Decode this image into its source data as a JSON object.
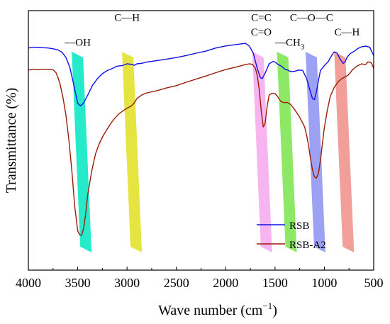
{
  "chart_data": {
    "type": "line",
    "xlabel": "Wave number (cm",
    "xlabel_sup": "−1",
    "xlabel_close": ")",
    "ylabel": "Transmittance (%)",
    "xlim": [
      4000,
      500
    ],
    "x_reversed": true,
    "ylim": [
      0,
      100
    ],
    "y_ticks_shown": false,
    "x_ticks": [
      4000,
      3500,
      3000,
      2500,
      2000,
      1500,
      1000,
      500
    ],
    "x_tick_labels": [
      "4000",
      "3500",
      "3000",
      "2500",
      "2000",
      "1500",
      "1000",
      "500"
    ],
    "legend": {
      "placement": "bottom-right"
    },
    "series": [
      {
        "name": "RSB",
        "color": "#1010e6",
        "x": [
          4000,
          3950,
          3900,
          3850,
          3800,
          3750,
          3700,
          3660,
          3620,
          3580,
          3540,
          3500,
          3470,
          3440,
          3400,
          3350,
          3300,
          3250,
          3200,
          3150,
          3100,
          3050,
          3000,
          2950,
          2925,
          2900,
          2850,
          2800,
          2700,
          2600,
          2500,
          2400,
          2300,
          2200,
          2100,
          2000,
          1900,
          1800,
          1760,
          1720,
          1680,
          1650,
          1630,
          1600,
          1560,
          1520,
          1500,
          1470,
          1430,
          1400,
          1380,
          1340,
          1300,
          1260,
          1220,
          1180,
          1150,
          1120,
          1100,
          1080,
          1060,
          1040,
          1000,
          960,
          930,
          900,
          870,
          840,
          810,
          790,
          770,
          740,
          700,
          660,
          620,
          580,
          540,
          520,
          500
        ],
        "y": [
          85.6,
          85.9,
          85.8,
          85.7,
          85.6,
          85.3,
          84.9,
          84.0,
          82.0,
          78.2,
          71.5,
          64.3,
          63.3,
          64.4,
          67.3,
          71.2,
          73.8,
          75.7,
          76.9,
          77.7,
          78.6,
          78.8,
          79.5,
          79.3,
          78.9,
          79.5,
          79.7,
          80.2,
          80.7,
          81.3,
          81.9,
          82.7,
          83.6,
          84.4,
          85.6,
          86.4,
          86.9,
          87.4,
          86.3,
          83.6,
          77.7,
          74.3,
          73.8,
          75.9,
          79.5,
          80.4,
          80.2,
          79.3,
          78.5,
          77.4,
          77.2,
          76.5,
          76.6,
          77.1,
          77.0,
          73.8,
          69.8,
          66.1,
          65.7,
          68.8,
          73.1,
          76.9,
          78.8,
          80.4,
          82.5,
          84.1,
          83.6,
          81.3,
          79.7,
          80.2,
          82.0,
          83.4,
          84.3,
          85.4,
          86.1,
          86.3,
          85.9,
          84.3,
          82.7
        ]
      },
      {
        "name": "RSB-A2",
        "color": "#9a1c08",
        "x": [
          4000,
          3950,
          3900,
          3850,
          3800,
          3750,
          3720,
          3700,
          3680,
          3650,
          3620,
          3590,
          3560,
          3530,
          3500,
          3480,
          3460,
          3440,
          3420,
          3400,
          3360,
          3320,
          3280,
          3240,
          3200,
          3160,
          3120,
          3080,
          3040,
          3000,
          2960,
          2930,
          2900,
          2850,
          2800,
          2700,
          2600,
          2500,
          2400,
          2300,
          2200,
          2100,
          2000,
          1900,
          1800,
          1760,
          1730,
          1700,
          1680,
          1660,
          1640,
          1620,
          1600,
          1580,
          1560,
          1540,
          1520,
          1500,
          1480,
          1460,
          1440,
          1420,
          1400,
          1380,
          1340,
          1300,
          1260,
          1230,
          1200,
          1180,
          1160,
          1140,
          1120,
          1100,
          1080,
          1060,
          1040,
          1020,
          1000,
          970,
          940,
          900,
          860,
          820,
          800,
          780,
          760,
          740,
          720,
          700,
          680,
          660,
          640,
          620,
          600,
          580,
          560,
          540,
          520,
          500
        ],
        "y": [
          77.1,
          77.4,
          77.2,
          77.4,
          77.4,
          77.2,
          76.1,
          74.3,
          71.9,
          66.7,
          59.9,
          50.5,
          38.7,
          24.5,
          15.1,
          13.6,
          13.4,
          16.1,
          21.5,
          28.7,
          37.8,
          44.7,
          48.9,
          51.9,
          54.4,
          56.8,
          58.7,
          60.3,
          61.4,
          62.4,
          63.2,
          64.3,
          66.1,
          67.5,
          68.3,
          69.1,
          70.2,
          71.1,
          72.4,
          73.6,
          74.8,
          76.1,
          77.3,
          78.2,
          79.2,
          79.5,
          79.3,
          77.9,
          75.0,
          69.6,
          61.4,
          55.2,
          56.5,
          63.1,
          67.4,
          68.0,
          68.2,
          68.0,
          67.2,
          66.1,
          65.0,
          64.7,
          64.5,
          64.7,
          63.8,
          61.8,
          59.5,
          57.5,
          55.2,
          52.0,
          48.0,
          42.9,
          38.6,
          35.9,
          35.5,
          37.4,
          42.3,
          48.6,
          54.9,
          61.6,
          67.0,
          70.4,
          72.6,
          73.9,
          74.3,
          74.7,
          75.1,
          75.9,
          77.0,
          77.7,
          78.4,
          78.8,
          79.2,
          79.5,
          79.3,
          79.3,
          80.2,
          80.2,
          79.7,
          77.7
        ]
      }
    ],
    "bands": [
      {
        "center": 3460,
        "color": "#00e8c2"
      },
      {
        "center": 2950,
        "color": "#e0df20"
      },
      {
        "center": 1630,
        "color": "#f4a8ee"
      },
      {
        "center": 1380,
        "color": "#78e44a"
      },
      {
        "center": 1090,
        "color": "#8b90f2"
      },
      {
        "center": 800,
        "color": "#ef8e86"
      }
    ],
    "annotations": [
      {
        "id": "oh",
        "text": "—OH",
        "x": 3500,
        "y": 86.5
      },
      {
        "id": "ch1",
        "text": "C—H",
        "x": 3000,
        "y": 96.0
      },
      {
        "id": "cc",
        "text": "C=C",
        "x": 1640,
        "y": 96.0
      },
      {
        "id": "co",
        "text": "C=O",
        "x": 1640,
        "y": 90.5
      },
      {
        "id": "ch3",
        "text": "—CH",
        "sub": "3",
        "x": 1350,
        "y": 86.5
      },
      {
        "id": "coc",
        "text": "C—O—C",
        "x": 1130,
        "y": 96.0
      },
      {
        "id": "ch2",
        "text": "C—H",
        "x": 770,
        "y": 90.5
      }
    ]
  }
}
